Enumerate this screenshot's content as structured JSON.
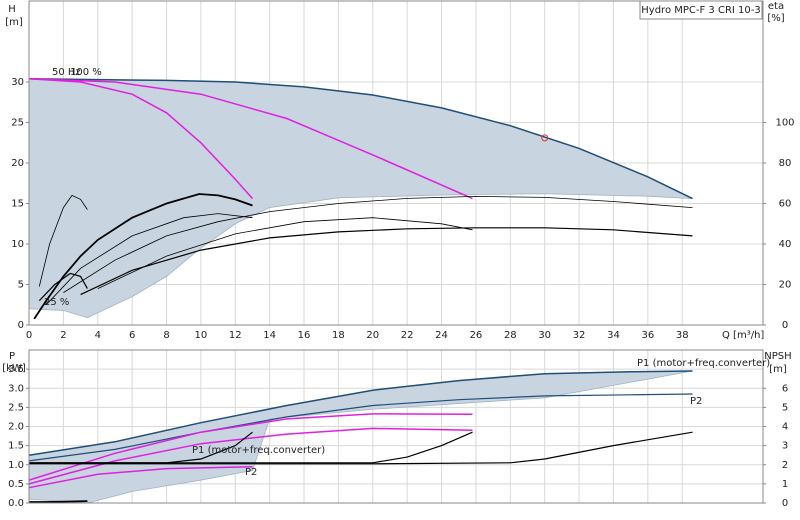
{
  "chart_data": [
    {
      "type": "line",
      "title": "Hydro MPC-F 3 CRI 10-3",
      "y_label": "H",
      "y_unit": "[m]",
      "y2_label": "eta",
      "y2_unit": "[%]",
      "x_label": "Q [m³/h]",
      "xlim": [
        0,
        42.7
      ],
      "xticks": [
        0,
        2,
        4,
        6,
        8,
        10,
        12,
        14,
        16,
        18,
        20,
        22,
        24,
        26,
        28,
        30,
        32,
        34,
        36,
        38
      ],
      "show_xtick_labels": true,
      "ylim": [
        0,
        40
      ],
      "yticks": [
        0,
        5,
        10,
        15,
        20,
        25,
        30
      ],
      "y2lim": [
        0,
        160
      ],
      "y2ticks": [
        0,
        20,
        40,
        60,
        80,
        100
      ],
      "grid": true,
      "shaded_range": {
        "color": "#c8d4e0",
        "x": [
          0,
          4,
          8,
          12,
          16,
          20,
          24,
          28,
          32,
          36,
          38.6,
          36,
          30,
          25,
          18,
          14,
          12,
          10,
          8,
          6,
          3.4,
          2,
          0
        ],
        "values": [
          30.4,
          30.3,
          30.2,
          30.0,
          29.4,
          28.4,
          26.8,
          24.6,
          21.8,
          18.3,
          15.6,
          15.9,
          16.2,
          16.1,
          15.7,
          14.5,
          12.5,
          9.5,
          6.0,
          3.5,
          0.9,
          1.8,
          2.0
        ]
      },
      "series": [
        {
          "color": "#1f4e79",
          "width": 1.5,
          "x": [
            0,
            4,
            8,
            12,
            16,
            20,
            24,
            28,
            32,
            36,
            38.6
          ],
          "values": [
            30.4,
            30.3,
            30.2,
            30.0,
            29.4,
            28.4,
            26.8,
            24.6,
            21.8,
            18.3,
            15.6
          ]
        },
        {
          "color": "#e020e0",
          "width": 1.5,
          "x": [
            0,
            3,
            6,
            8,
            10,
            12,
            13
          ],
          "values": [
            30.4,
            30.0,
            28.5,
            26.2,
            22.5,
            18.0,
            15.6
          ]
        },
        {
          "color": "#e020e0",
          "width": 1.5,
          "x": [
            0,
            5,
            10,
            15,
            20,
            25.8
          ],
          "values": [
            30.4,
            30.0,
            28.5,
            25.5,
            21.0,
            15.6
          ]
        },
        {
          "color": "#000000",
          "width": 1.8,
          "axis": "y2",
          "x": [
            0.3,
            1,
            2,
            3,
            4,
            6,
            8,
            9.9,
            11,
            12,
            13
          ],
          "values": [
            3,
            12,
            24,
            34,
            42,
            53,
            60,
            64.7,
            64,
            62,
            59
          ]
        },
        {
          "color": "#000000",
          "width": 0.8,
          "axis": "y2",
          "x": [
            0.6,
            1.2,
            2,
            2.5,
            3,
            3.4
          ],
          "values": [
            19,
            40,
            58,
            64,
            62,
            57
          ]
        },
        {
          "color": "#000000",
          "width": 1.2,
          "axis": "y2",
          "x": [
            0.6,
            1.5,
            2.4,
            3,
            3.4
          ],
          "values": [
            12,
            20,
            25.5,
            24,
            18
          ]
        },
        {
          "color": "#000000",
          "width": 0.8,
          "axis": "y2",
          "x": [
            1,
            3,
            6,
            9,
            11,
            13
          ],
          "values": [
            10,
            28,
            44,
            53,
            55,
            53
          ]
        },
        {
          "color": "#000000",
          "width": 0.8,
          "axis": "y2",
          "x": [
            2,
            5,
            8,
            11,
            14,
            18,
            22,
            26,
            30,
            34,
            38.6
          ],
          "values": [
            16,
            32,
            44,
            51,
            56,
            60,
            62.5,
            63.5,
            63,
            61,
            58
          ]
        },
        {
          "color": "#000000",
          "width": 1.2,
          "axis": "y2",
          "x": [
            3,
            6,
            10,
            14,
            18,
            22,
            26,
            30,
            34,
            38.6
          ],
          "values": [
            15,
            27,
            37,
            43,
            46,
            47.5,
            48,
            48,
            47,
            44
          ]
        },
        {
          "color": "#000000",
          "width": 0.8,
          "axis": "y2",
          "x": [
            4,
            8,
            12,
            16,
            20,
            24,
            25.8
          ],
          "values": [
            18,
            34,
            45,
            51,
            53,
            50,
            47
          ]
        }
      ],
      "markers": [
        {
          "x": 30,
          "y": 23.1,
          "color": "#e03030"
        }
      ],
      "annotations": [
        "50 Hz",
        "100 %",
        "25 %"
      ]
    },
    {
      "type": "line",
      "y_label": "P",
      "y_unit": "[kW]",
      "y2_label": "NPSH",
      "y2_unit": "[m]",
      "xlim": [
        0,
        42.7
      ],
      "xticks": [
        0,
        2,
        4,
        6,
        8,
        10,
        12,
        14,
        16,
        18,
        20,
        22,
        24,
        26,
        28,
        30,
        32,
        34,
        36,
        38
      ],
      "show_xtick_labels": false,
      "ylim": [
        0,
        4
      ],
      "yticks": [
        {
          "value": 0,
          "label": "0.0"
        },
        0.5,
        {
          "value": 1,
          "label": "1.0"
        },
        1.5,
        {
          "value": 2,
          "label": "2.0"
        },
        2.5,
        {
          "value": 3,
          "label": "3.0"
        },
        3.5
      ],
      "y2lim": [
        0,
        8
      ],
      "y2ticks": [
        0,
        1,
        2,
        3,
        4,
        5,
        6
      ],
      "grid": true,
      "shaded_range": {
        "color": "#c8d4e0",
        "x": [
          0,
          5,
          10,
          15,
          20,
          25,
          30,
          35,
          38.6,
          30,
          20,
          14,
          13,
          10,
          6,
          3.4,
          0
        ],
        "values": [
          1.25,
          1.6,
          2.1,
          2.55,
          2.95,
          3.2,
          3.38,
          3.43,
          3.45,
          2.75,
          2.45,
          2.2,
          0.85,
          0.6,
          0.3,
          0,
          0.1
        ]
      },
      "series": [
        {
          "color": "#1f4e79",
          "width": 1.5,
          "x": [
            0,
            5,
            10,
            15,
            20,
            25,
            30,
            35,
            38.6
          ],
          "values": [
            1.25,
            1.6,
            2.1,
            2.55,
            2.95,
            3.2,
            3.38,
            3.43,
            3.45
          ]
        },
        {
          "color": "#1f4e79",
          "width": 1.2,
          "x": [
            0,
            5,
            10,
            15,
            20,
            25,
            30,
            35,
            38.6
          ],
          "values": [
            1.1,
            1.4,
            1.85,
            2.25,
            2.55,
            2.7,
            2.8,
            2.83,
            2.85
          ]
        },
        {
          "color": "#e020e0",
          "width": 1.5,
          "x": [
            0,
            4,
            8,
            13
          ],
          "values": [
            0.4,
            0.75,
            0.9,
            0.95
          ]
        },
        {
          "color": "#e020e0",
          "width": 1.5,
          "x": [
            0,
            5,
            10,
            15,
            20,
            25.8
          ],
          "values": [
            0.5,
            1.1,
            1.55,
            1.8,
            1.95,
            1.9
          ]
        },
        {
          "color": "#e020e0",
          "width": 1.5,
          "x": [
            0,
            5,
            10,
            15,
            20,
            25.8
          ],
          "values": [
            0.6,
            1.3,
            1.85,
            2.2,
            2.33,
            2.32
          ]
        },
        {
          "color": "#000000",
          "width": 1.2,
          "axis": "y2",
          "x": [
            0,
            4,
            8,
            10,
            12,
            13
          ],
          "values": [
            2.1,
            2.1,
            2.1,
            2.3,
            3.0,
            3.7
          ]
        },
        {
          "color": "#000000",
          "width": 1.2,
          "axis": "y2",
          "x": [
            0,
            10,
            20,
            22,
            24,
            25.8
          ],
          "values": [
            2.1,
            2.1,
            2.1,
            2.4,
            3.0,
            3.7
          ]
        },
        {
          "color": "#000000",
          "width": 1.2,
          "axis": "y2",
          "x": [
            0,
            10,
            20,
            28,
            30,
            34,
            38.6
          ],
          "values": [
            2.05,
            2.05,
            2.05,
            2.1,
            2.3,
            3.0,
            3.7
          ]
        },
        {
          "color": "#000000",
          "width": 1.8,
          "axis": "y2",
          "x": [
            0,
            1,
            3.4
          ],
          "values": [
            0.05,
            0.05,
            0.1
          ]
        }
      ],
      "annotations": [
        "P1 (motor+freq.converter)",
        "P2",
        "P1 (motor+freq.converter)",
        "P2"
      ]
    }
  ]
}
